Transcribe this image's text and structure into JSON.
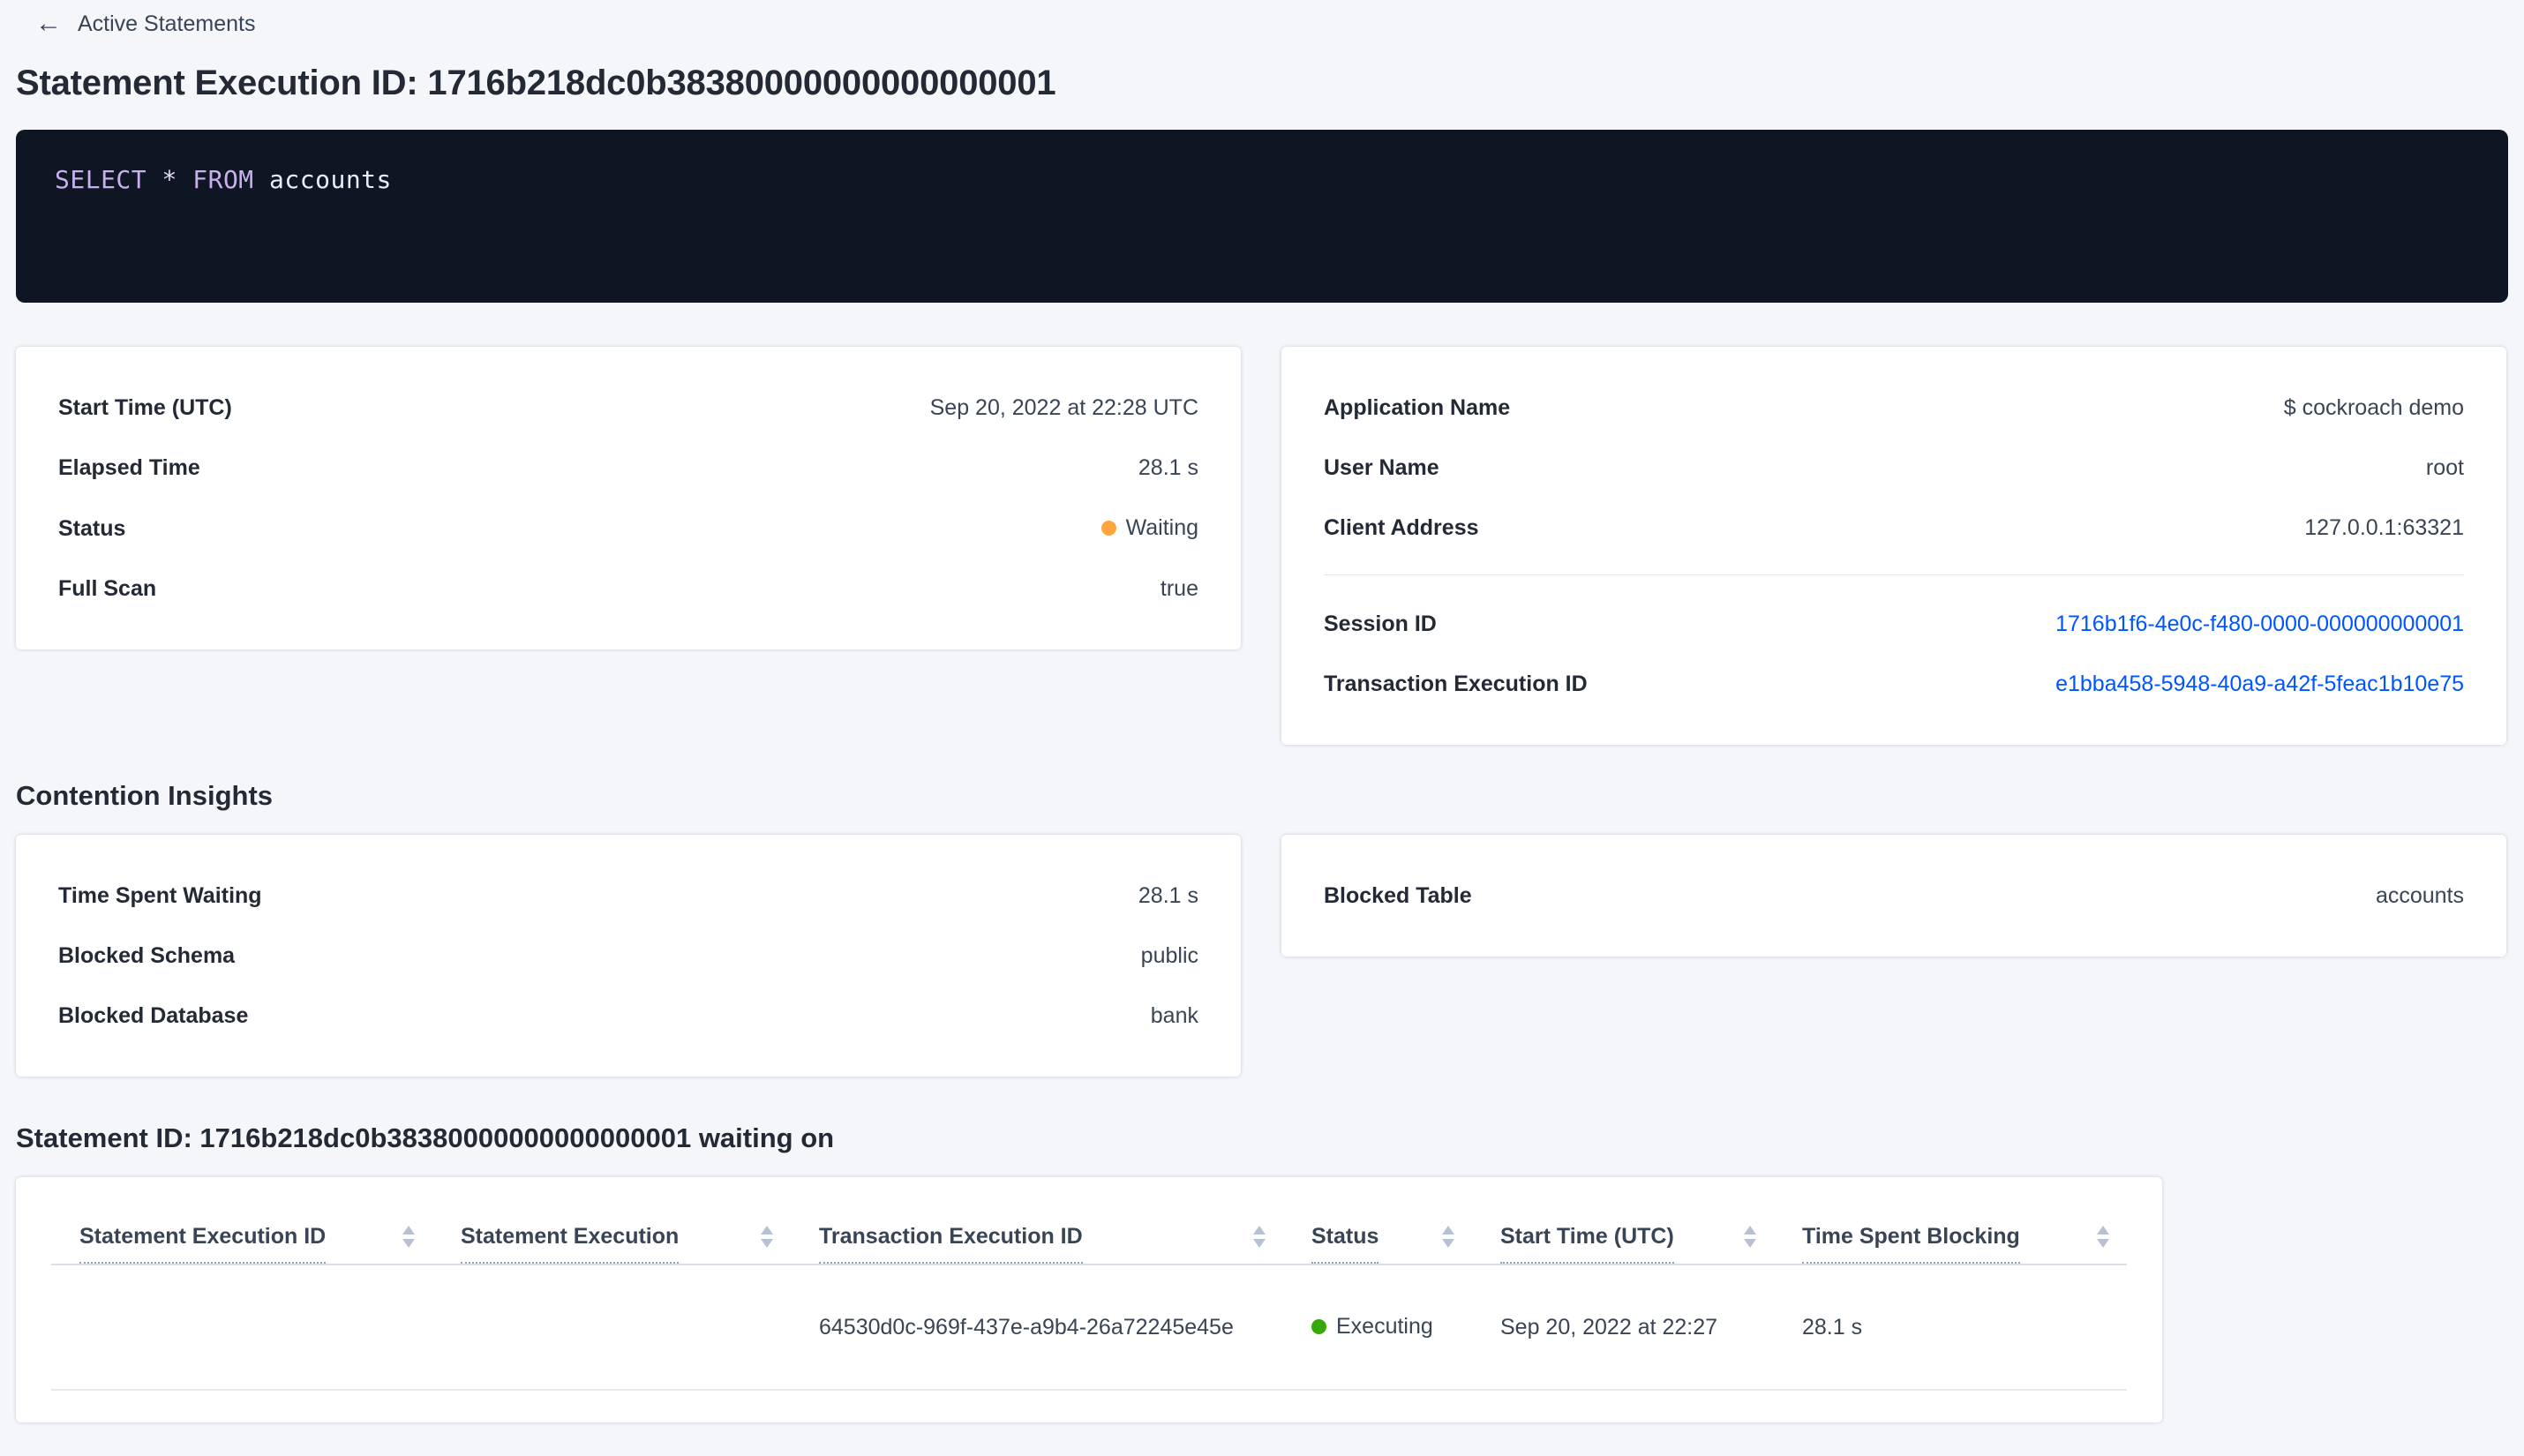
{
  "colors": {
    "link_blue": "#0055FF",
    "status_waiting_orange": "#FFA53B",
    "status_executing_green": "#37A806",
    "sql_box_background": "#0E1523",
    "page_background": "#F4F6FA"
  },
  "back_link": {
    "glyph": "←",
    "label": "Active Statements"
  },
  "page_title": "Statement Execution ID: 1716b218dc0b38380000000000000001",
  "sql_statement": {
    "full_text": "SELECT * FROM accounts",
    "tokens": [
      {
        "text": "SELECT",
        "type": "keyword"
      },
      {
        "text": "*",
        "type": "operator"
      },
      {
        "text": "FROM",
        "type": "keyword"
      },
      {
        "text": "accounts",
        "type": "identifier"
      }
    ]
  },
  "execution_card": {
    "rows": [
      {
        "label": "Start Time (UTC)",
        "value": "Sep 20, 2022 at 22:28 UTC"
      },
      {
        "label": "Elapsed Time",
        "value": "28.1 s"
      },
      {
        "label": "Status",
        "value": "Waiting"
      },
      {
        "label": "Full Scan",
        "value": "true"
      }
    ]
  },
  "session_card": {
    "rows": [
      {
        "label": "Application Name",
        "value": "$ cockroach demo"
      },
      {
        "label": "User Name",
        "value": "root"
      },
      {
        "label": "Client Address",
        "value": "127.0.0.1:63321"
      },
      {
        "label": "Session ID",
        "value": "1716b1f6-4e0c-f480-0000-000000000001"
      },
      {
        "label": "Transaction Execution ID",
        "value": "e1bba458-5948-40a9-a42f-5feac1b10e75"
      }
    ]
  },
  "contention_section": {
    "heading": "Contention Insights",
    "waiting_card": {
      "rows": [
        {
          "label": "Time Spent Waiting",
          "value": "28.1 s"
        },
        {
          "label": "Blocked Schema",
          "value": "public"
        },
        {
          "label": "Blocked Database",
          "value": "bank"
        }
      ]
    },
    "blocked_card": {
      "rows": [
        {
          "label": "Blocked Table",
          "value": "accounts"
        }
      ]
    }
  },
  "waiting_on_section": {
    "heading": "Statement ID: 1716b218dc0b38380000000000000001 waiting on",
    "table": {
      "columns": [
        {
          "label": "Statement Execution ID"
        },
        {
          "label": "Statement Execution"
        },
        {
          "label": "Transaction Execution ID"
        },
        {
          "label": "Status"
        },
        {
          "label": "Start Time (UTC)"
        },
        {
          "label": "Time Spent Blocking"
        }
      ],
      "rows": [
        {
          "statement_execution_id": "",
          "statement_execution": "",
          "transaction_execution_id": "64530d0c-969f-437e-a9b4-26a72245e45e",
          "status": "Executing",
          "start_time": "Sep 20, 2022 at 22:27",
          "time_spent_blocking": "28.1 s"
        }
      ]
    }
  }
}
